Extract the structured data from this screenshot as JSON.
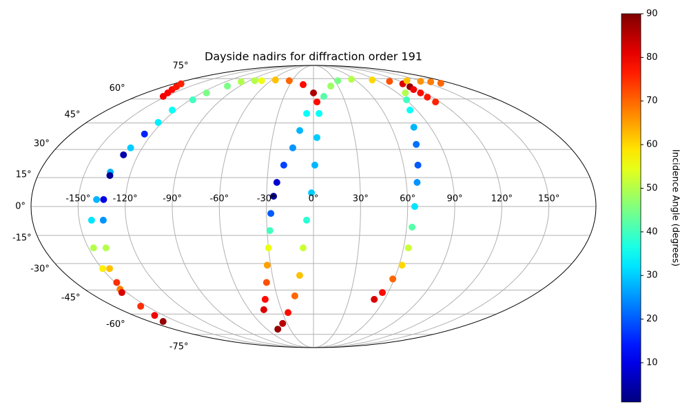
{
  "chart_data": {
    "type": "scatter",
    "projection": "mollweide",
    "title": "Dayside nadirs for diffraction order 191",
    "xlim": [
      -180,
      180
    ],
    "ylim": [
      -90,
      90
    ],
    "grid": true,
    "xticks": [
      {
        "value": -150,
        "label": "-150°"
      },
      {
        "value": -120,
        "label": "-120°"
      },
      {
        "value": -90,
        "label": "-90°"
      },
      {
        "value": -60,
        "label": "-60°"
      },
      {
        "value": -30,
        "label": "-30°"
      },
      {
        "value": 0,
        "label": "0°"
      },
      {
        "value": 30,
        "label": "30°"
      },
      {
        "value": 60,
        "label": "60°"
      },
      {
        "value": 90,
        "label": "90°"
      },
      {
        "value": 120,
        "label": "120°"
      },
      {
        "value": 150,
        "label": "150°"
      }
    ],
    "yticks": [
      {
        "value": -75,
        "label": "-75°"
      },
      {
        "value": -60,
        "label": "-60°"
      },
      {
        "value": -45,
        "label": "-45°"
      },
      {
        "value": -30,
        "label": "-30°"
      },
      {
        "value": -15,
        "label": "-15°"
      },
      {
        "value": 0,
        "label": "0°"
      },
      {
        "value": 15,
        "label": "15°"
      },
      {
        "value": 30,
        "label": "30°"
      },
      {
        "value": 45,
        "label": "45°"
      },
      {
        "value": 60,
        "label": "60°"
      },
      {
        "value": 75,
        "label": "75°"
      }
    ],
    "colorbar": {
      "label": "Incidence Angle (degrees)",
      "lim": [
        1,
        90
      ],
      "ticks": [
        10,
        20,
        30,
        40,
        50,
        60,
        70,
        80,
        90
      ],
      "colormap": "jet"
    },
    "series": [
      {
        "x": [
          3.3,
          0,
          -13.1,
          -34.1,
          -54.8,
          -73,
          -98.5,
          -105.3,
          -117.5,
          -123.2,
          -128.1,
          -133.5,
          -138.4,
          -142.1,
          -146.6,
          -149.6,
          -152.1,
          -155.7,
          -159.2,
          -165.3
        ],
        "y": [
          58.0,
          64.1,
          70.2,
          73.3,
          73.9,
          73.3,
          72.4,
          69.1,
          59.4,
          45.3,
          30.9,
          17.9,
          3.6,
          -7.1,
          -21.6,
          -32.8,
          -44.5,
          -54.9,
          -60.9,
          -65.1
        ],
        "c": [
          78,
          86,
          78,
          70,
          62,
          55,
          50,
          45,
          40,
          33,
          30,
          28,
          28,
          32,
          50,
          58,
          68,
          75,
          80,
          88
        ]
      },
      {
        "x": [
          -82.7,
          -114.9,
          -123.3,
          -125.5,
          -130.1,
          -133.0,
          -133.9,
          -134.6,
          -138.3,
          -144.7,
          -148.8,
          -154.1
        ],
        "y": [
          73.3,
          64.1,
          52.8,
          38.6,
          27.1,
          16.1,
          3.6,
          -7.1,
          -21.6,
          -32.8,
          -40.6,
          -46.5
        ],
        "c": [
          50,
          45,
          35,
          15,
          5,
          3,
          10,
          25,
          50,
          62,
          75,
          82
        ]
      },
      {
        "x": [
          -153.1,
          -156.5,
          -161.0,
          -165.2,
          -170.8
        ],
        "y": [
          61.7,
          64.1,
          66.5,
          68.6,
          70.8
        ],
        "c": [
          80,
          79,
          78,
          77,
          76
        ]
      },
      {
        "x": [
          -5.8,
          -10.4,
          -14.5,
          -19.8,
          -23.7,
          -25.5,
          -27.2,
          -28.2,
          -30,
          -32.4,
          -35.5,
          -40.9,
          -46.4
        ],
        "y": [
          50.7,
          40.6,
          30.9,
          21.6,
          12.5,
          5.3,
          -3.6,
          -12.5,
          -21.6,
          -30.9,
          -40.6,
          -50.6,
          -57.1
        ],
        "c": [
          35,
          28,
          25,
          18,
          8,
          3,
          20,
          40,
          55,
          65,
          72,
          78,
          82
        ]
      },
      {
        "x": [
          21.1,
          10.5,
          4.7,
          2.5,
          0.9,
          -1.3,
          -4.4,
          -6.9,
          -10.1,
          -15.4,
          -24.6,
          -35.1,
          -46.0
        ],
        "y": [
          69.1,
          61.7,
          50.7,
          36.6,
          21.6,
          7.1,
          -7.1,
          -21.6,
          -36.6,
          -48.5,
          -59.0,
          -66.5,
          -70.8
        ],
        "c": [
          48,
          42,
          35,
          30,
          28,
          30,
          38,
          52,
          62,
          70,
          78,
          85,
          88
        ]
      },
      {
        "x": [
          34.1,
          55.9,
          84.6,
          105.0,
          115.1,
          116.2
        ],
        "y": [
          73.3,
          74.5,
          73.9,
          72.8,
          70.8,
          68.6
        ],
        "c": [
          45,
          50,
          60,
          72,
          82,
          88
        ]
      },
      {
        "x": [
          98.6,
          90.6,
          84.2,
          77.3,
          72.9,
          69.6,
          67.0,
          64.5,
          63.5,
          63.2,
          62.0,
          58.9,
          55.4,
          51.4
        ],
        "y": [
          64.1,
          59.4,
          52.8,
          42.5,
          32.8,
          21.6,
          12.5,
          0,
          -10.7,
          -21.6,
          -30.9,
          -38.6,
          -46.5,
          -50.6
        ],
        "c": [
          50,
          40,
          35,
          28,
          22,
          20,
          25,
          32,
          42,
          52,
          60,
          70,
          78,
          82
        ]
      },
      {
        "x": [
          131.4,
          147.9,
          159.5,
          166.8
        ],
        "y": [
          73.3,
          72.8,
          72.4,
          71.3
        ],
        "c": [
          62,
          66,
          68,
          70
        ]
      },
      {
        "x": [
          113.9,
          114.9,
          114.8,
          115.8
        ],
        "y": [
          66.5,
          64.1,
          61.2,
          58.0
        ],
        "c": [
          80,
          78,
          77,
          76
        ]
      }
    ]
  }
}
